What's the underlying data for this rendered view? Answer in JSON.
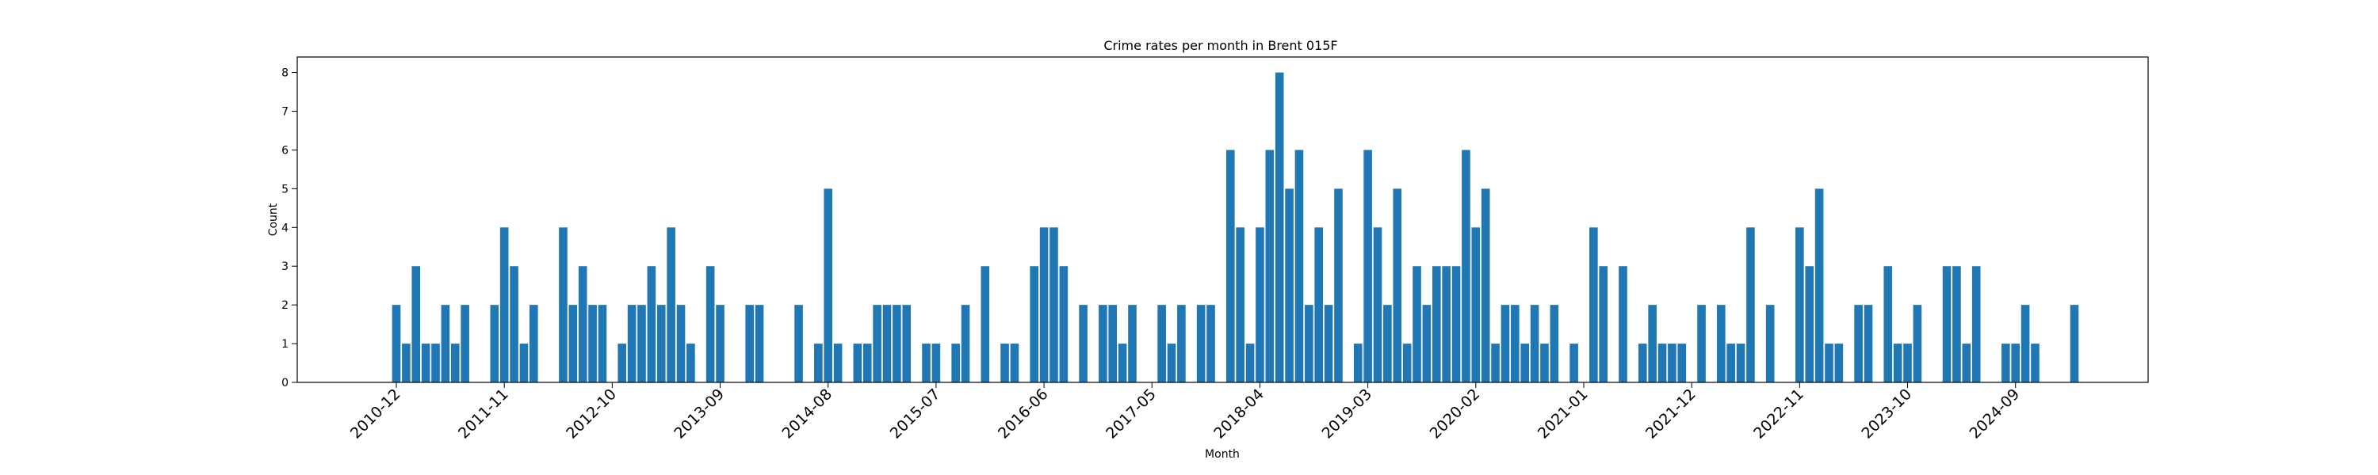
{
  "chart_data": {
    "type": "bar",
    "title": "Crime rates per month in Brent 015F",
    "xlabel": "Month",
    "ylabel": "Count",
    "ylim": [
      0,
      8.4
    ],
    "yticks": [
      0,
      1,
      2,
      3,
      4,
      5,
      6,
      7,
      8
    ],
    "xticks": [
      "2010-12",
      "2011-11",
      "2012-10",
      "2013-09",
      "2014-08",
      "2015-07",
      "2016-06",
      "2017-05",
      "2018-04",
      "2019-03",
      "2020-02",
      "2021-01",
      "2021-12",
      "2022-11",
      "2023-10",
      "2024-09"
    ],
    "grid": false,
    "bar_color": "#1f77b4",
    "data": [
      [
        "2010-12",
        2
      ],
      [
        "2011-01",
        1
      ],
      [
        "2011-02",
        3
      ],
      [
        "2011-03",
        1
      ],
      [
        "2011-04",
        1
      ],
      [
        "2011-05",
        2
      ],
      [
        "2011-06",
        1
      ],
      [
        "2011-07",
        2
      ],
      [
        "2011-10",
        2
      ],
      [
        "2011-11",
        4
      ],
      [
        "2011-12",
        3
      ],
      [
        "2012-01",
        1
      ],
      [
        "2012-02",
        2
      ],
      [
        "2012-05",
        4
      ],
      [
        "2012-06",
        2
      ],
      [
        "2012-07",
        3
      ],
      [
        "2012-08",
        2
      ],
      [
        "2012-09",
        2
      ],
      [
        "2012-11",
        1
      ],
      [
        "2012-12",
        2
      ],
      [
        "2013-01",
        2
      ],
      [
        "2013-02",
        3
      ],
      [
        "2013-03",
        2
      ],
      [
        "2013-04",
        4
      ],
      [
        "2013-05",
        2
      ],
      [
        "2013-06",
        1
      ],
      [
        "2013-08",
        3
      ],
      [
        "2013-09",
        2
      ],
      [
        "2013-12",
        2
      ],
      [
        "2014-01",
        2
      ],
      [
        "2014-05",
        2
      ],
      [
        "2014-07",
        1
      ],
      [
        "2014-08",
        5
      ],
      [
        "2014-09",
        1
      ],
      [
        "2014-11",
        1
      ],
      [
        "2014-12",
        1
      ],
      [
        "2015-01",
        2
      ],
      [
        "2015-02",
        2
      ],
      [
        "2015-03",
        2
      ],
      [
        "2015-04",
        2
      ],
      [
        "2015-06",
        1
      ],
      [
        "2015-07",
        1
      ],
      [
        "2015-09",
        1
      ],
      [
        "2015-10",
        2
      ],
      [
        "2015-12",
        3
      ],
      [
        "2016-02",
        1
      ],
      [
        "2016-03",
        1
      ],
      [
        "2016-05",
        3
      ],
      [
        "2016-06",
        4
      ],
      [
        "2016-07",
        4
      ],
      [
        "2016-08",
        3
      ],
      [
        "2016-10",
        2
      ],
      [
        "2016-12",
        2
      ],
      [
        "2017-01",
        2
      ],
      [
        "2017-02",
        1
      ],
      [
        "2017-03",
        2
      ],
      [
        "2017-06",
        2
      ],
      [
        "2017-07",
        1
      ],
      [
        "2017-08",
        2
      ],
      [
        "2017-10",
        2
      ],
      [
        "2017-11",
        2
      ],
      [
        "2018-01",
        6
      ],
      [
        "2018-02",
        4
      ],
      [
        "2018-03",
        1
      ],
      [
        "2018-04",
        4
      ],
      [
        "2018-05",
        6
      ],
      [
        "2018-06",
        8
      ],
      [
        "2018-07",
        5
      ],
      [
        "2018-08",
        6
      ],
      [
        "2018-09",
        2
      ],
      [
        "2018-10",
        4
      ],
      [
        "2018-11",
        2
      ],
      [
        "2018-12",
        5
      ],
      [
        "2019-02",
        1
      ],
      [
        "2019-03",
        6
      ],
      [
        "2019-04",
        4
      ],
      [
        "2019-05",
        2
      ],
      [
        "2019-06",
        5
      ],
      [
        "2019-07",
        1
      ],
      [
        "2019-08",
        3
      ],
      [
        "2019-09",
        2
      ],
      [
        "2019-10",
        3
      ],
      [
        "2019-11",
        3
      ],
      [
        "2019-12",
        3
      ],
      [
        "2020-01",
        6
      ],
      [
        "2020-02",
        4
      ],
      [
        "2020-03",
        5
      ],
      [
        "2020-04",
        1
      ],
      [
        "2020-05",
        2
      ],
      [
        "2020-06",
        2
      ],
      [
        "2020-07",
        1
      ],
      [
        "2020-08",
        2
      ],
      [
        "2020-09",
        1
      ],
      [
        "2020-10",
        2
      ],
      [
        "2020-12",
        1
      ],
      [
        "2021-02",
        4
      ],
      [
        "2021-03",
        3
      ],
      [
        "2021-05",
        3
      ],
      [
        "2021-07",
        1
      ],
      [
        "2021-08",
        2
      ],
      [
        "2021-09",
        1
      ],
      [
        "2021-10",
        1
      ],
      [
        "2021-11",
        1
      ],
      [
        "2022-01",
        2
      ],
      [
        "2022-03",
        2
      ],
      [
        "2022-04",
        1
      ],
      [
        "2022-05",
        1
      ],
      [
        "2022-06",
        4
      ],
      [
        "2022-08",
        2
      ],
      [
        "2022-11",
        4
      ],
      [
        "2022-12",
        3
      ],
      [
        "2023-01",
        5
      ],
      [
        "2023-02",
        1
      ],
      [
        "2023-03",
        1
      ],
      [
        "2023-05",
        2
      ],
      [
        "2023-06",
        2
      ],
      [
        "2023-08",
        3
      ],
      [
        "2023-09",
        1
      ],
      [
        "2023-10",
        1
      ],
      [
        "2023-11",
        2
      ],
      [
        "2024-02",
        3
      ],
      [
        "2024-03",
        3
      ],
      [
        "2024-04",
        1
      ],
      [
        "2024-05",
        3
      ],
      [
        "2024-08",
        1
      ],
      [
        "2024-09",
        1
      ],
      [
        "2024-10",
        2
      ],
      [
        "2024-11",
        1
      ],
      [
        "2025-03",
        2
      ]
    ]
  }
}
